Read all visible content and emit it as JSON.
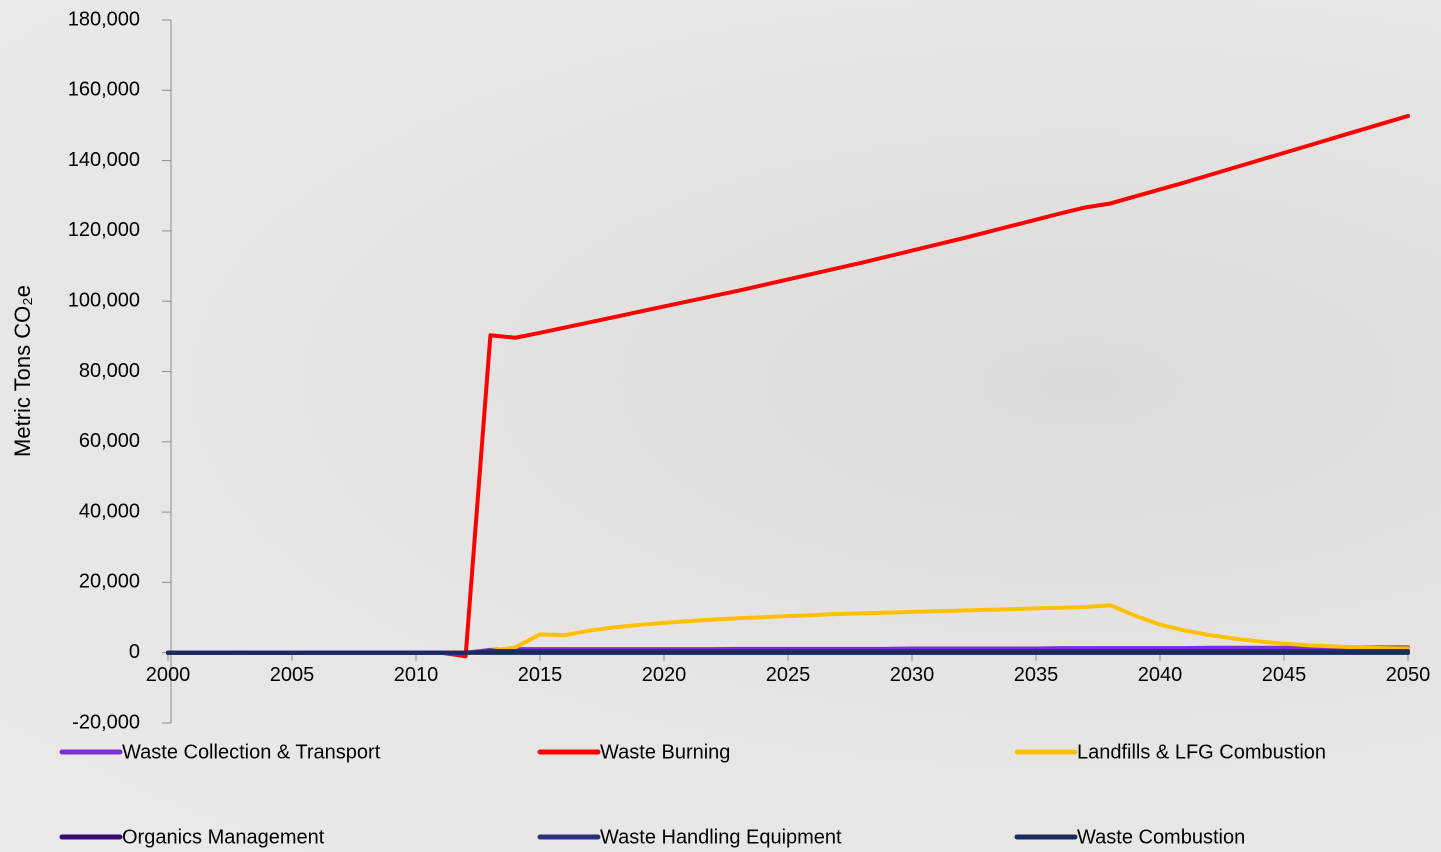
{
  "chart_data": {
    "type": "line",
    "ylabel": "Metric Tons CO₂e",
    "x": [
      2000,
      2001,
      2002,
      2003,
      2004,
      2005,
      2006,
      2007,
      2008,
      2009,
      2010,
      2011,
      2012,
      2013,
      2014,
      2015,
      2016,
      2017,
      2018,
      2019,
      2020,
      2021,
      2022,
      2023,
      2024,
      2025,
      2026,
      2027,
      2028,
      2029,
      2030,
      2031,
      2032,
      2033,
      2034,
      2035,
      2036,
      2037,
      2038,
      2039,
      2040,
      2041,
      2042,
      2043,
      2044,
      2045,
      2046,
      2047,
      2048,
      2049,
      2050
    ],
    "xlim": [
      2000,
      2050
    ],
    "xticks": [
      2000,
      2005,
      2010,
      2015,
      2020,
      2025,
      2030,
      2035,
      2040,
      2045,
      2050
    ],
    "ylim": [
      -20000,
      180000
    ],
    "yticks": [
      {
        "value": -20000,
        "label": "-20,000"
      },
      0,
      {
        "value": 20000,
        "label": "20,000"
      },
      {
        "value": 40000,
        "label": "40,000"
      },
      {
        "value": 60000,
        "label": "60,000"
      },
      {
        "value": 80000,
        "label": "80,000"
      },
      {
        "value": 100000,
        "label": "100,000"
      },
      {
        "value": 120000,
        "label": "120,000"
      },
      {
        "value": 140000,
        "label": "140,000"
      },
      {
        "value": 160000,
        "label": "160,000"
      },
      {
        "value": 180000,
        "label": "180,000"
      }
    ],
    "series": [
      {
        "name": "Waste Collection & Transport",
        "color": "#7b2fd6",
        "values": [
          0,
          0,
          0,
          0,
          0,
          0,
          0,
          0,
          0,
          0,
          0,
          0,
          0,
          800,
          1000,
          1000,
          1000,
          1000,
          1000,
          1000,
          1000,
          1000,
          1000,
          1100,
          1100,
          1100,
          1100,
          1100,
          1100,
          1100,
          1200,
          1200,
          1200,
          1200,
          1200,
          1200,
          1300,
          1300,
          1300,
          1300,
          1300,
          1300,
          1400,
          1400,
          1400,
          1400,
          1400,
          1400,
          1500,
          1500,
          1500
        ]
      },
      {
        "name": "Waste Burning",
        "color": "#ff0000",
        "values": [
          0,
          0,
          0,
          0,
          0,
          0,
          0,
          0,
          0,
          0,
          0,
          0,
          -1000,
          90300,
          89600,
          91000,
          92500,
          94000,
          95500,
          97000,
          98500,
          100000,
          101500,
          103000,
          104600,
          106200,
          107800,
          109400,
          111000,
          112700,
          114400,
          116100,
          117800,
          119600,
          121400,
          123200,
          125000,
          126700,
          127800,
          129800,
          131800,
          133800,
          135900,
          138000,
          140100,
          142200,
          144300,
          146400,
          148500,
          150600,
          152700
        ]
      },
      {
        "name": "Landfills & LFG Combustion",
        "color": "#ffc000",
        "values": [
          0,
          0,
          0,
          0,
          0,
          0,
          0,
          0,
          0,
          0,
          0,
          0,
          0,
          500,
          1500,
          5200,
          5000,
          6300,
          7200,
          7900,
          8500,
          9000,
          9400,
          9800,
          10100,
          10400,
          10700,
          11000,
          11200,
          11400,
          11600,
          11800,
          12000,
          12200,
          12400,
          12600,
          12800,
          13000,
          13500,
          10500,
          8000,
          6300,
          5000,
          4000,
          3200,
          2600,
          2100,
          1800,
          1500,
          1300,
          1200
        ]
      },
      {
        "name": "Organics Management",
        "color": "#3b0a6e",
        "values": [
          0,
          0,
          0,
          0,
          0,
          0,
          0,
          0,
          0,
          0,
          0,
          0,
          0,
          0,
          0,
          0,
          0,
          0,
          0,
          0,
          0,
          0,
          0,
          0,
          0,
          0,
          0,
          0,
          0,
          0,
          0,
          0,
          0,
          0,
          0,
          0,
          0,
          0,
          0,
          0,
          0,
          0,
          0,
          0,
          0,
          0,
          0,
          0,
          0,
          0,
          0
        ]
      },
      {
        "name": "Waste Handling Equipment",
        "color": "#2e2f7a",
        "values": [
          0,
          0,
          0,
          0,
          0,
          0,
          0,
          0,
          0,
          0,
          0,
          0,
          0,
          500,
          500,
          500,
          500,
          500,
          500,
          500,
          500,
          500,
          500,
          500,
          500,
          500,
          500,
          500,
          500,
          500,
          500,
          500,
          500,
          500,
          500,
          500,
          500,
          500,
          500,
          500,
          500,
          500,
          500,
          500,
          500,
          500,
          500,
          500,
          500,
          500,
          500
        ]
      },
      {
        "name": "Waste Combustion",
        "color": "#1b2a5e",
        "values": [
          0,
          0,
          0,
          0,
          0,
          0,
          0,
          0,
          0,
          0,
          0,
          0,
          0,
          0,
          0,
          0,
          0,
          0,
          0,
          0,
          0,
          0,
          0,
          0,
          0,
          0,
          0,
          0,
          0,
          0,
          0,
          0,
          0,
          0,
          0,
          0,
          0,
          0,
          0,
          0,
          0,
          0,
          0,
          0,
          0,
          0,
          0,
          0,
          0,
          0,
          0
        ]
      }
    ]
  }
}
